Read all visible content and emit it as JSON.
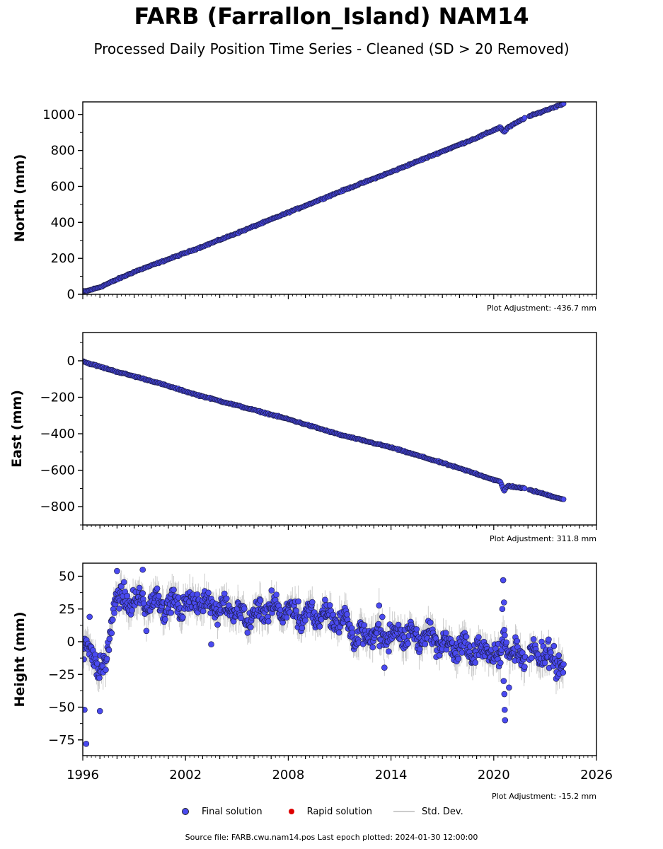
{
  "title": "FARB (Farrallon_Island) NAM14",
  "subtitle": "Processed Daily Position Time Series - Cleaned (SD > 20 Removed)",
  "legend": {
    "final_label": "Final solution",
    "rapid_label": "Rapid solution",
    "std_label": "Std. Dev.",
    "final_color": "#4a4af0",
    "rapid_color": "#dd0000",
    "std_color": "#cccccc"
  },
  "footer": "Source file: FARB.cwu.nam14.pos  Last epoch plotted: 2024-01-30 12:00:00",
  "chart_data": [
    {
      "type": "scatter",
      "ylabel": "North (mm)",
      "xlim": [
        1996,
        2026
      ],
      "ylim": [
        0,
        1070
      ],
      "yticks": [
        0,
        200,
        400,
        600,
        800,
        1000
      ],
      "ytick_labels": [
        "0",
        "200",
        "400",
        "600",
        "800",
        "1000"
      ],
      "xtick_labels_visible": false,
      "adjustment": "Plot Adjustment: -436.7 mm",
      "series": [
        {
          "values_desc": "linear trend",
          "x": [
            1996.0,
            1996.3,
            1997.0,
            1999.0,
            2002.7,
            2005.0,
            2008.0,
            2011.0,
            2014.0,
            2017.0,
            2019.0,
            2020.4,
            2020.6,
            2020.8,
            2021.8,
            2024.08
          ],
          "y": [
            15,
            20,
            40,
            125,
            255,
            340,
            455,
            570,
            680,
            795,
            870,
            930,
            900,
            925,
            980,
            1060
          ]
        }
      ]
    },
    {
      "type": "scatter",
      "ylabel": "East (mm)",
      "xlim": [
        1996,
        2026
      ],
      "ylim": [
        -900,
        155
      ],
      "yticks": [
        0,
        -200,
        -400,
        -600,
        -800
      ],
      "ytick_labels": [
        "0",
        "−200",
        "−400",
        "−600",
        "−800"
      ],
      "xtick_labels_visible": false,
      "adjustment": "Plot Adjustment: 311.8 mm",
      "series": [
        {
          "values_desc": "linear trend",
          "x": [
            1996.0,
            1996.2,
            1998.0,
            2000.0,
            2002.6,
            2005.0,
            2008.0,
            2011.0,
            2014.0,
            2017.0,
            2019.0,
            2020.4,
            2020.6,
            2020.8,
            2021.8,
            2024.08
          ],
          "y": [
            0,
            -10,
            -60,
            -110,
            -185,
            -245,
            -320,
            -405,
            -475,
            -560,
            -620,
            -665,
            -715,
            -685,
            -700,
            -760
          ]
        }
      ]
    },
    {
      "type": "scatter",
      "ylabel": "Height (mm)",
      "xlim": [
        1996,
        2026
      ],
      "ylim": [
        -87,
        60
      ],
      "yticks": [
        50,
        25,
        0,
        -25,
        -50,
        -75
      ],
      "ytick_labels": [
        "50",
        "25",
        "0",
        "−25",
        "−50",
        "−75"
      ],
      "xticks": [
        1996,
        2002,
        2008,
        2014,
        2020,
        2026
      ],
      "xtick_labels": [
        "1996",
        "2002",
        "2008",
        "2014",
        "2020",
        "2026"
      ],
      "adjustment": "Plot Adjustment: -15.2 mm",
      "series": [
        {
          "values_desc": "noisy seasonal signal",
          "x": [
            1996.0,
            1996.5,
            1997.0,
            1997.3,
            1997.8,
            1998.5,
            1999.5,
            2000.5,
            2001.5,
            2002.5,
            2003.5,
            2004.5,
            2005.5,
            2006.5,
            2007.5,
            2008.5,
            2009.5,
            2010.5,
            2011.5,
            2012.0,
            2013.0,
            2014.0,
            2015.0,
            2016.0,
            2017.0,
            2018.0,
            2019.0,
            2019.9,
            2020.4,
            2020.6,
            2020.9,
            2021.5,
            2022.0,
            2022.5,
            2023.0,
            2023.5,
            2024.08
          ],
          "y": [
            -10,
            -5,
            -20,
            -25,
            30,
            32,
            30,
            30,
            28,
            30,
            28,
            26,
            18,
            24,
            25,
            22,
            20,
            18,
            15,
            3,
            5,
            6,
            5,
            3,
            1,
            -3,
            -5,
            -8,
            -15,
            10,
            -8,
            -10,
            -12,
            -10,
            -12,
            -15,
            -18
          ]
        }
      ]
    }
  ]
}
